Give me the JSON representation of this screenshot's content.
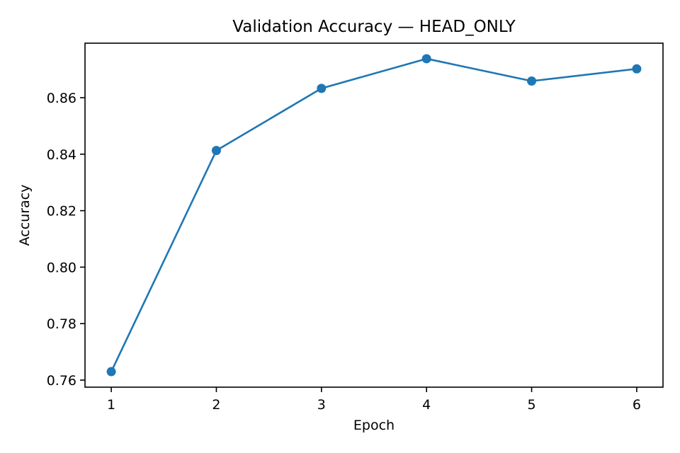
{
  "chart_data": {
    "type": "line",
    "title": "Validation Accuracy — HEAD_ONLY",
    "xlabel": "Epoch",
    "ylabel": "Accuracy",
    "x": [
      1,
      2,
      3,
      4,
      5,
      6
    ],
    "series": [
      {
        "values": [
          0.763,
          0.8413,
          0.8633,
          0.8738,
          0.8659,
          0.8702
        ],
        "color": "#1f77b4",
        "marker": "circle"
      }
    ],
    "xticks": [
      "1",
      "2",
      "3",
      "4",
      "5",
      "6"
    ],
    "yticks": [
      0.76,
      0.78,
      0.8,
      0.82,
      0.84,
      0.86
    ],
    "ytick_labels": [
      "0.76",
      "0.78",
      "0.80",
      "0.82",
      "0.84",
      "0.86"
    ],
    "xlim": [
      0.75,
      6.25
    ],
    "ylim": [
      0.7575,
      0.8793
    ],
    "grid": false,
    "legend": false
  }
}
